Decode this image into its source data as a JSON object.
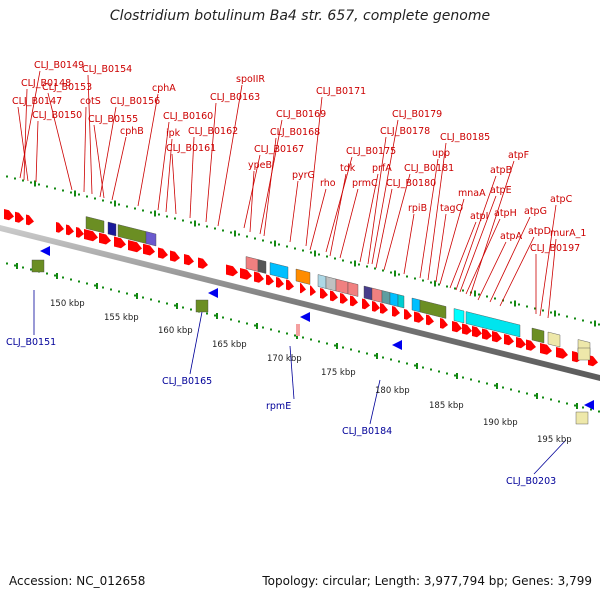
{
  "header": {
    "title": "Clostridium botulinum Ba4 str. 657, complete genome"
  },
  "footer": {
    "accession": "Accession: NC_012658",
    "topology": "Topology: circular; Length: 3,977,794 bp; Genes: 3,799"
  },
  "colors": {
    "gene_label": "#cc0000",
    "reverse_label": "#000099",
    "backbone": "#888888",
    "tick": "#118811",
    "forward_gene": "#ff0000",
    "reverse_gene": "#0000ee"
  },
  "scale_labels": [
    "150 kbp",
    "155 kbp",
    "160 kbp",
    "165 kbp",
    "170 kbp",
    "175 kbp",
    "180 kbp",
    "185 kbp",
    "190 kbp",
    "195 kbp"
  ],
  "forward_labels": [
    "CLJ_B0149",
    "CLJ_B0148",
    "CLJ_B0147",
    "CLJ_B0150",
    "CLJ_B0153",
    "cotS",
    "CLJ_B0154",
    "CLJ_B0156",
    "CLJ_B0155",
    "cphB",
    "cphA",
    "CLJ_B0160",
    "ipk",
    "CLJ_B0162",
    "CLJ_B0161",
    "spoIIR",
    "CLJ_B0163",
    "CLJ_B0169",
    "CLJ_B0168",
    "CLJ_B0167",
    "ypeB",
    "pyrG",
    "CLJ_B0171",
    "rho",
    "CLJ_B0175",
    "tdk",
    "prmC",
    "prfA",
    "CLJ_B0179",
    "CLJ_B0178",
    "CLJ_B0181",
    "CLJ_B0180",
    "rpiB",
    "upp",
    "CLJ_B0185",
    "mnaA",
    "tagO",
    "atpI",
    "atpB",
    "atpE",
    "atpF",
    "atpH",
    "atpA",
    "atpG",
    "atpD",
    "atpC",
    "murA_1",
    "CLJ_B0197"
  ],
  "reverse_labels": [
    "CLJ_B0151",
    "CLJ_B0165",
    "rpmE",
    "CLJ_B0184",
    "CLJ_B0203"
  ]
}
